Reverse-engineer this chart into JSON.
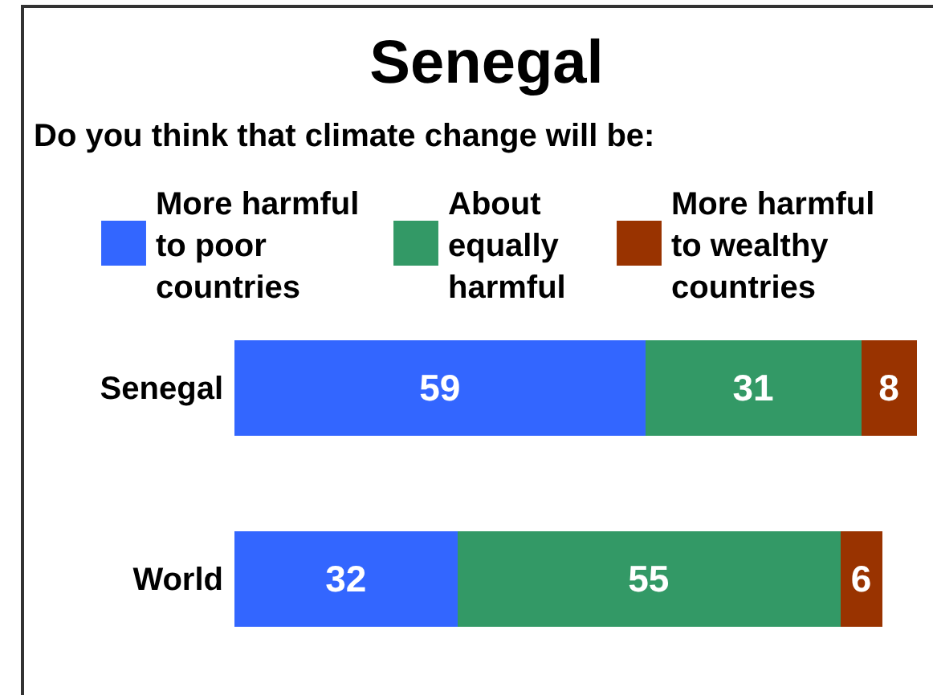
{
  "chart_data": {
    "type": "bar",
    "title": "Senegal",
    "subtitle": "Do you think that climate change will be:",
    "orientation": "horizontal",
    "stacked": true,
    "categories": [
      "Senegal",
      "World"
    ],
    "series": [
      {
        "name": "More harmful to poor countries",
        "color": "#3366ff",
        "values": [
          59,
          32
        ]
      },
      {
        "name": "About equally harmful",
        "color": "#339966",
        "values": [
          31,
          55
        ]
      },
      {
        "name": "More harmful to wealthy countries",
        "color": "#993300",
        "values": [
          8,
          6
        ]
      }
    ],
    "data_labels": true,
    "legend": "top",
    "tick_labels": "y"
  }
}
